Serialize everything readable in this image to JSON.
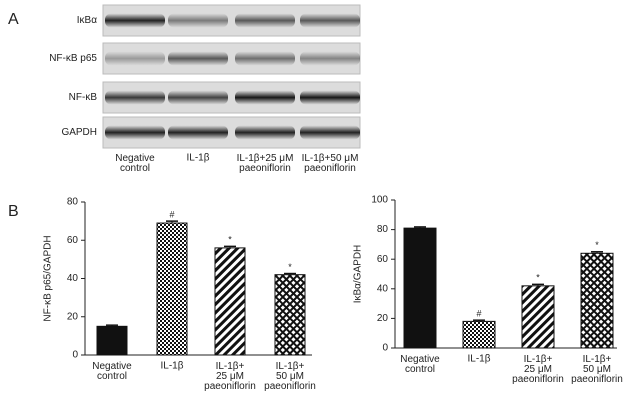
{
  "panel_labels": [
    "A",
    "B"
  ],
  "blot": {
    "rows": [
      "IκBα",
      "NF-κB p65",
      "NF-κB",
      "GAPDH"
    ],
    "lanes": [
      "Negative\ncontrol",
      "IL-1β",
      "IL-1β+25 μM\npaeoniflorin",
      "IL-1β+50 μM\npaeoniflorin"
    ]
  },
  "chart_data": [
    {
      "type": "bar",
      "y_label": "NF-κB p65/GAPDH",
      "categories": [
        "Negative\ncontrol",
        "IL-1β",
        "IL-1β+\n25 μM\npaeoniflorin",
        "IL-1β+\n50 μM\npaeoniflorin"
      ],
      "values": [
        15,
        69,
        56,
        42
      ],
      "errors": [
        0.6,
        1,
        0.8,
        0.6
      ],
      "annotations": [
        null,
        "#",
        "*",
        "*"
      ],
      "ylim": [
        0,
        80
      ],
      "yticks": [
        0,
        20,
        40,
        60,
        80
      ]
    },
    {
      "type": "bar",
      "y_label": "IκBα/GAPDH",
      "categories": [
        "Negative\ncontrol",
        "IL-1β",
        "IL-1β+\n25 μM\npaeoniflorin",
        "IL-1β+\n50 μM\npaeoniflorin"
      ],
      "values": [
        81,
        18,
        42,
        64
      ],
      "errors": [
        0.8,
        0.8,
        1,
        1
      ],
      "annotations": [
        null,
        "#",
        "*",
        "*"
      ],
      "ylim": [
        0,
        100
      ],
      "yticks": [
        0,
        20,
        40,
        60,
        80,
        100
      ]
    }
  ]
}
